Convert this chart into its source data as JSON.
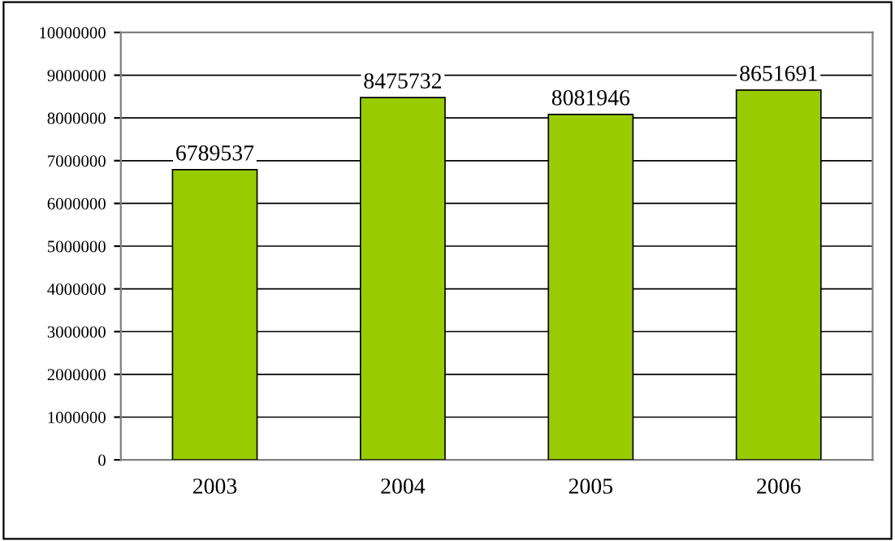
{
  "chart_data": {
    "type": "bar",
    "categories": [
      "2003",
      "2004",
      "2005",
      "2006"
    ],
    "values": [
      6789537,
      8475732,
      8081946,
      8651691
    ],
    "color": "#99cc00",
    "ylim": [
      0,
      10000000
    ],
    "yticks": [
      0,
      1000000,
      2000000,
      3000000,
      4000000,
      5000000,
      6000000,
      7000000,
      8000000,
      9000000,
      10000000
    ],
    "grid": "y",
    "data_labels": true
  }
}
